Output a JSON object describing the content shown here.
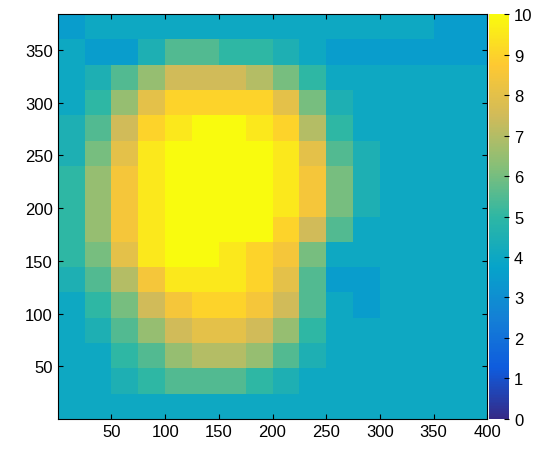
{
  "chart_data": {
    "type": "heatmap",
    "xlim": [
      0,
      400
    ],
    "ylim": [
      0,
      384
    ],
    "xticks": [
      50,
      100,
      150,
      200,
      250,
      300,
      350,
      400
    ],
    "yticks": [
      50,
      100,
      150,
      200,
      250,
      300,
      350
    ],
    "colorbar_range": [
      0,
      10
    ],
    "colorbar_ticks": [
      0,
      1,
      2,
      3,
      4,
      5,
      6,
      7,
      8,
      9,
      10
    ],
    "cells": [
      [
        4,
        4,
        4,
        4,
        4,
        4,
        4,
        4,
        4,
        4,
        4,
        4,
        4,
        4,
        4,
        4
      ],
      [
        4,
        4,
        4.5,
        5,
        5.5,
        5.5,
        5.5,
        5,
        4.5,
        4,
        4,
        4,
        4,
        4,
        4,
        4
      ],
      [
        4,
        4,
        5,
        5.5,
        6.5,
        7,
        7,
        6.5,
        5.5,
        4.5,
        4,
        4,
        4,
        4,
        4,
        4
      ],
      [
        4,
        4.5,
        5.5,
        6.5,
        7.5,
        8,
        8,
        7.5,
        6.5,
        5,
        4,
        4,
        4,
        4,
        4,
        4
      ],
      [
        4,
        5,
        6,
        7.5,
        8.5,
        9,
        9,
        8.5,
        7.5,
        5.5,
        4,
        3.5,
        4,
        4,
        4,
        4
      ],
      [
        4.5,
        5.5,
        7,
        8.5,
        9.5,
        9.5,
        9.5,
        9,
        8,
        5.5,
        3.5,
        3.5,
        4,
        4,
        4,
        4
      ],
      [
        5,
        6,
        8,
        9.5,
        10,
        10,
        9.5,
        9,
        8.5,
        6,
        4,
        4,
        4,
        4,
        4,
        4
      ],
      [
        5,
        6.5,
        8.5,
        9.5,
        10,
        10,
        10,
        10,
        9,
        7.5,
        5.5,
        4,
        4,
        4,
        4,
        4
      ],
      [
        5,
        6.5,
        8.5,
        9.5,
        10,
        10,
        10,
        10,
        9.5,
        8.5,
        6,
        4.5,
        4,
        4,
        4,
        4
      ],
      [
        5,
        6.5,
        8.5,
        9.5,
        10,
        10,
        10,
        10,
        9.5,
        8.5,
        6,
        4.5,
        4,
        4,
        4,
        4
      ],
      [
        4.5,
        6,
        8,
        9.5,
        10,
        10,
        10,
        10,
        9.5,
        8,
        5.5,
        4.5,
        4,
        4,
        4,
        4
      ],
      [
        4.5,
        5.5,
        7.5,
        9,
        9.5,
        10,
        10,
        9.5,
        9,
        7,
        5,
        4,
        4,
        4,
        4,
        4
      ],
      [
        4,
        5,
        6.5,
        8,
        9,
        9,
        9,
        9,
        8,
        6,
        4.5,
        4,
        4,
        4,
        4,
        4
      ],
      [
        4,
        4.5,
        5.5,
        6.5,
        7.5,
        7.5,
        7.5,
        7,
        6,
        5,
        4,
        4,
        4,
        4,
        4,
        4
      ],
      [
        4,
        3.5,
        3.5,
        4.5,
        5.5,
        5.5,
        5,
        5,
        4.5,
        4,
        3.5,
        3.5,
        3.5,
        3.5,
        3.5,
        3.5
      ],
      [
        3.5,
        4,
        4,
        4,
        4,
        4,
        4,
        4,
        4,
        4,
        4,
        4,
        4,
        4,
        3.5,
        3.5
      ]
    ]
  }
}
